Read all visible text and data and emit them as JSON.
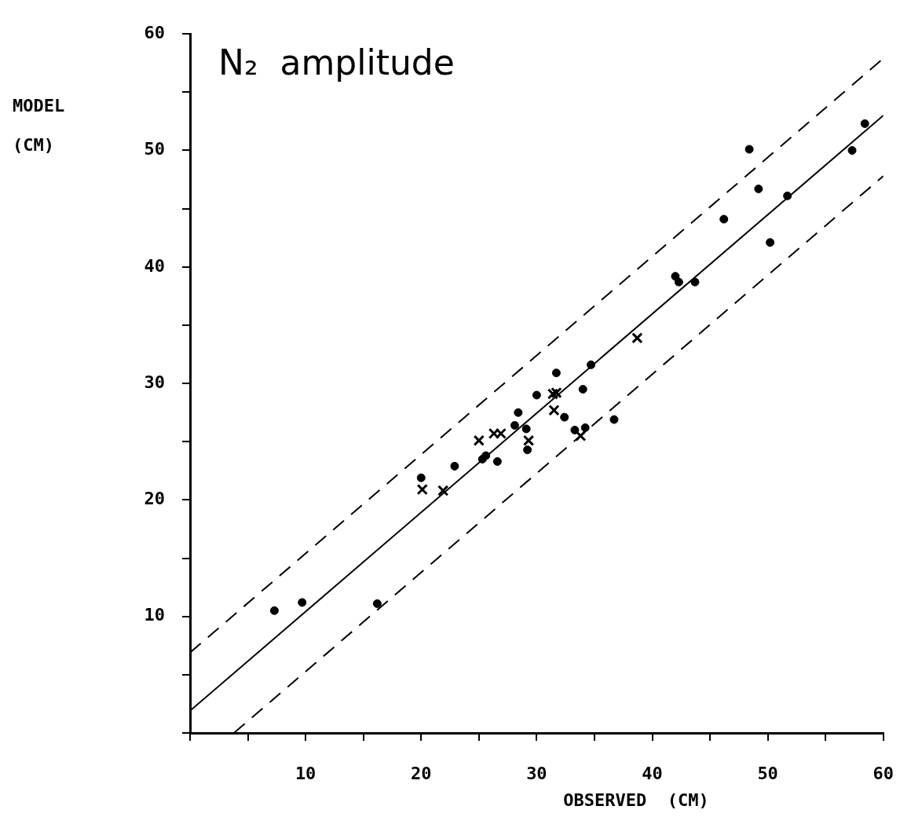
{
  "chart_data": {
    "type": "scatter",
    "title": "N₂  amplitude",
    "xlabel": "OBSERVED  (CM)",
    "ylabel": "MODEL (CM)",
    "xlim": [
      0,
      60
    ],
    "ylim": [
      0,
      60
    ],
    "xticks": [
      {
        "value": 0,
        "label": null
      },
      {
        "value": 5,
        "label": null
      },
      10,
      {
        "value": 15,
        "label": null
      },
      20,
      {
        "value": 25,
        "label": null
      },
      30,
      {
        "value": 35,
        "label": null
      },
      40,
      {
        "value": 45,
        "label": null
      },
      50,
      {
        "value": 55,
        "label": null
      },
      60
    ],
    "yticks": [
      {
        "value": 0,
        "label": null
      },
      {
        "value": 5,
        "label": null
      },
      10,
      {
        "value": 15,
        "label": null
      },
      20,
      {
        "value": 25,
        "label": null
      },
      30,
      {
        "value": 35,
        "label": null
      },
      40,
      {
        "value": 45,
        "label": null
      },
      50,
      {
        "value": 55,
        "label": null
      },
      60
    ],
    "grid": false,
    "series": [
      {
        "type": "scatter",
        "marker": "circle",
        "color": "#000000",
        "x": [
          7.3,
          9.7,
          16.2,
          20.0,
          22.9,
          25.3,
          25.6,
          26.6,
          28.4,
          28.1,
          29.1,
          29.2,
          30.0,
          31.7,
          32.4,
          34.0,
          34.7,
          33.3,
          34.2,
          36.7,
          42.0,
          42.3,
          43.7,
          46.2,
          48.4,
          49.2,
          50.2,
          51.7,
          57.3,
          58.4
        ],
        "values": [
          10.5,
          11.2,
          11.1,
          21.9,
          22.9,
          23.5,
          23.8,
          23.3,
          27.5,
          26.4,
          26.1,
          24.3,
          29.0,
          30.9,
          27.1,
          29.5,
          31.6,
          26.0,
          26.2,
          26.9,
          39.2,
          38.7,
          38.7,
          44.1,
          50.1,
          46.7,
          42.1,
          46.1,
          50.0,
          52.3
        ]
      },
      {
        "type": "scatter",
        "marker": "cross",
        "color": "#000000",
        "x": [
          20.1,
          21.9,
          25.0,
          26.3,
          26.9,
          29.3,
          31.4,
          31.7,
          31.5,
          33.8,
          38.7
        ],
        "values": [
          20.9,
          20.8,
          25.1,
          25.7,
          25.7,
          25.1,
          29.1,
          29.2,
          27.7,
          25.5,
          33.9
        ]
      },
      {
        "type": "line",
        "line_style": "solid",
        "marker": "none",
        "color": "#000000",
        "x": [
          0,
          60
        ],
        "values": [
          1.9,
          53
        ]
      },
      {
        "type": "line",
        "line_style": "dashed",
        "marker": "none",
        "color": "#000000",
        "x": [
          0,
          60
        ],
        "values": [
          6.9,
          57.9
        ]
      },
      {
        "type": "line",
        "line_style": "dashed",
        "marker": "none",
        "color": "#000000",
        "x": [
          3.8,
          60
        ],
        "values": [
          0,
          47.8
        ]
      }
    ]
  }
}
